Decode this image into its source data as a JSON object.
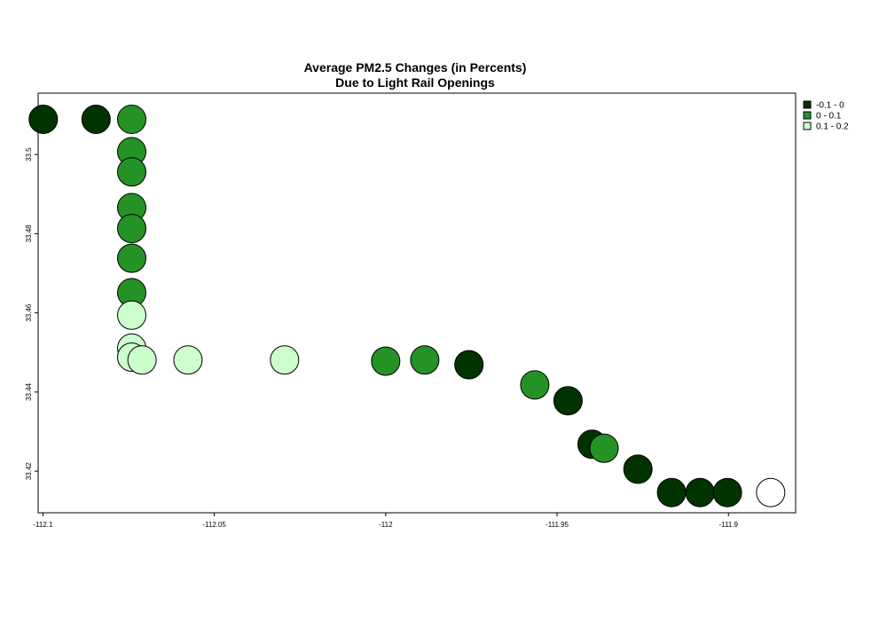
{
  "chart_data": {
    "type": "scatter",
    "title": [
      "Average PM2.5 Changes (in Percents)",
      "Due to Light Rail Openings"
    ],
    "xlabel": "",
    "ylabel": "",
    "xlim": [
      -112.1014,
      -111.8804
    ],
    "ylim": [
      33.4095,
      33.5155
    ],
    "x_ticks": [
      {
        "value": -112.1,
        "label": "-112.1"
      },
      {
        "value": -112.05,
        "label": "-112.05"
      },
      {
        "value": -112.0,
        "label": "-112"
      },
      {
        "value": -111.95,
        "label": "-111.95"
      },
      {
        "value": -111.9,
        "label": "-111.9"
      }
    ],
    "y_ticks": [
      {
        "value": 33.42,
        "label": "33.42"
      },
      {
        "value": 33.44,
        "label": "33.44"
      },
      {
        "value": 33.46,
        "label": "33.46"
      },
      {
        "value": 33.48,
        "label": "33.48"
      },
      {
        "value": 33.5,
        "label": "33.5"
      }
    ],
    "grid": false,
    "legend": {
      "placement": "right",
      "entries": [
        {
          "label": "-0.1 - 0",
          "color": "#003300"
        },
        {
          "label": "0 - 0.1",
          "color": "#259225"
        },
        {
          "label": "0.1 - 0.2",
          "color": "#ccffcc"
        }
      ]
    },
    "points": [
      {
        "x": -112.0999,
        "y": 33.5089,
        "class": 0
      },
      {
        "x": -112.0845,
        "y": 33.5089,
        "class": 0
      },
      {
        "x": -112.0741,
        "y": 33.5089,
        "class": 1
      },
      {
        "x": -112.0741,
        "y": 33.5007,
        "class": 1
      },
      {
        "x": -112.0741,
        "y": 33.4956,
        "class": 1
      },
      {
        "x": -112.0741,
        "y": 33.4866,
        "class": 1
      },
      {
        "x": -112.0741,
        "y": 33.4813,
        "class": 1
      },
      {
        "x": -112.0741,
        "y": 33.4738,
        "class": 1
      },
      {
        "x": -112.0741,
        "y": 33.4651,
        "class": 1
      },
      {
        "x": -112.0741,
        "y": 33.4594,
        "class": 2
      },
      {
        "x": -112.0741,
        "y": 33.4511,
        "class": 2
      },
      {
        "x": -112.0741,
        "y": 33.4488,
        "class": 2
      },
      {
        "x": -112.0711,
        "y": 33.4481,
        "class": 2
      },
      {
        "x": -112.0577,
        "y": 33.4481,
        "class": 2
      },
      {
        "x": -112.0295,
        "y": 33.4481,
        "class": 2
      },
      {
        "x": -112.0,
        "y": 33.4478,
        "class": 1
      },
      {
        "x": -111.9886,
        "y": 33.4481,
        "class": 1
      },
      {
        "x": -111.9757,
        "y": 33.4469,
        "class": 0
      },
      {
        "x": -111.9565,
        "y": 33.4418,
        "class": 1
      },
      {
        "x": -111.9468,
        "y": 33.4378,
        "class": 0
      },
      {
        "x": -111.9398,
        "y": 33.4268,
        "class": 0
      },
      {
        "x": -111.9363,
        "y": 33.4258,
        "class": 1
      },
      {
        "x": -111.9264,
        "y": 33.4205,
        "class": 0
      },
      {
        "x": -111.9166,
        "y": 33.4146,
        "class": 0
      },
      {
        "x": -111.9083,
        "y": 33.4146,
        "class": 0
      },
      {
        "x": -111.9003,
        "y": 33.4146,
        "class": 0
      },
      {
        "x": -111.8877,
        "y": 33.4146,
        "class": 3
      }
    ],
    "unclassified_color": "#ffffff"
  }
}
